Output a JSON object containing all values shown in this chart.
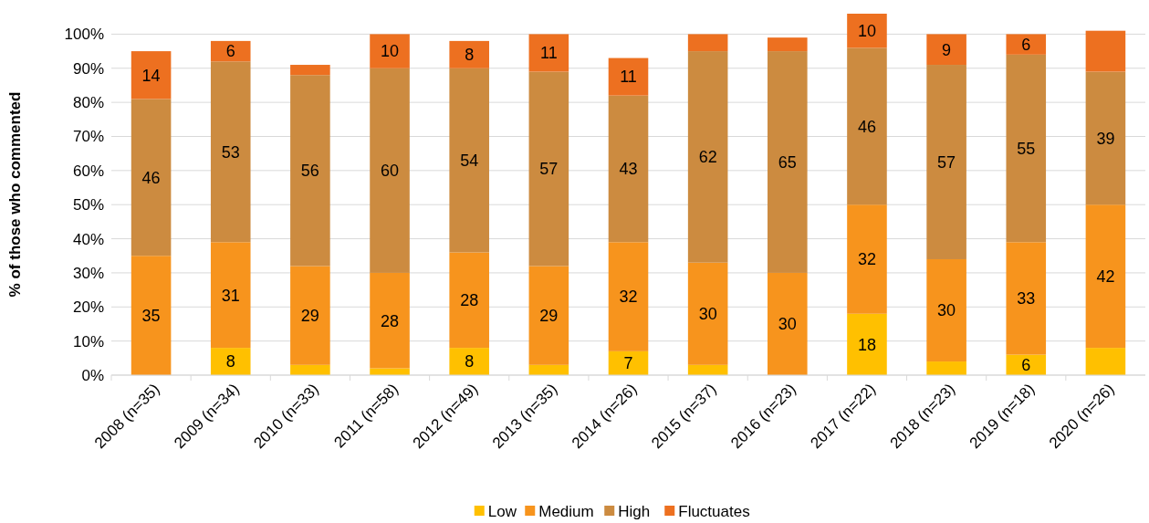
{
  "chart_data": {
    "type": "bar",
    "stacked": true,
    "ylabel": "% of those who commented",
    "categories": [
      "2008 (n=35)",
      "2009 (n=34)",
      "2010 (n=33)",
      "2011 (n=58)",
      "2012 (n=49)",
      "2013 (n=35)",
      "2014 (n=26)",
      "2015 (n=37)",
      "2016 (n=23)",
      "2017 (n=22)",
      "2018 (n=23)",
      "2019 (n=18)",
      "2020 (n=26)"
    ],
    "series": [
      {
        "name": "Low",
        "color": "#ffc000",
        "values": [
          0,
          8,
          3,
          2,
          8,
          3,
          7,
          3,
          0,
          18,
          4,
          6,
          8
        ],
        "value_labels": [
          null,
          "8",
          null,
          null,
          "8",
          null,
          "7",
          null,
          null,
          "18",
          null,
          "6",
          null
        ]
      },
      {
        "name": "Medium",
        "color": "#f7941d",
        "values": [
          35,
          31,
          29,
          28,
          28,
          29,
          32,
          30,
          30,
          32,
          30,
          33,
          42
        ],
        "value_labels": [
          "35",
          "31",
          "29",
          "28",
          "28",
          "29",
          "32",
          "30",
          "30",
          "32",
          "30",
          "33",
          "42"
        ]
      },
      {
        "name": "High",
        "color": "#cc8b40",
        "values": [
          46,
          53,
          56,
          60,
          54,
          57,
          43,
          62,
          65,
          46,
          57,
          55,
          39
        ],
        "value_labels": [
          "46",
          "53",
          "56",
          "60",
          "54",
          "57",
          "43",
          "62",
          "65",
          "46",
          "57",
          "55",
          "39"
        ]
      },
      {
        "name": "Fluctuates",
        "color": "#ed7020",
        "values": [
          14,
          6,
          3,
          10,
          8,
          11,
          11,
          5,
          4,
          10,
          9,
          6,
          12
        ],
        "value_labels": [
          "14",
          "6",
          null,
          "10",
          "8",
          "11",
          "11",
          null,
          null,
          "10",
          "9",
          "6",
          null
        ]
      }
    ],
    "ylim": [
      0,
      106
    ],
    "yticks": [
      {
        "value": 0,
        "label": "0%"
      },
      {
        "value": 10,
        "label": "10%"
      },
      {
        "value": 20,
        "label": "20%"
      },
      {
        "value": 30,
        "label": "30%"
      },
      {
        "value": 40,
        "label": "40%"
      },
      {
        "value": 50,
        "label": "50%"
      },
      {
        "value": 60,
        "label": "60%"
      },
      {
        "value": 70,
        "label": "70%"
      },
      {
        "value": 80,
        "label": "80%"
      },
      {
        "value": 90,
        "label": "90%"
      },
      {
        "value": 100,
        "label": "100%"
      }
    ],
    "grid": "y",
    "legend": "bottom"
  }
}
